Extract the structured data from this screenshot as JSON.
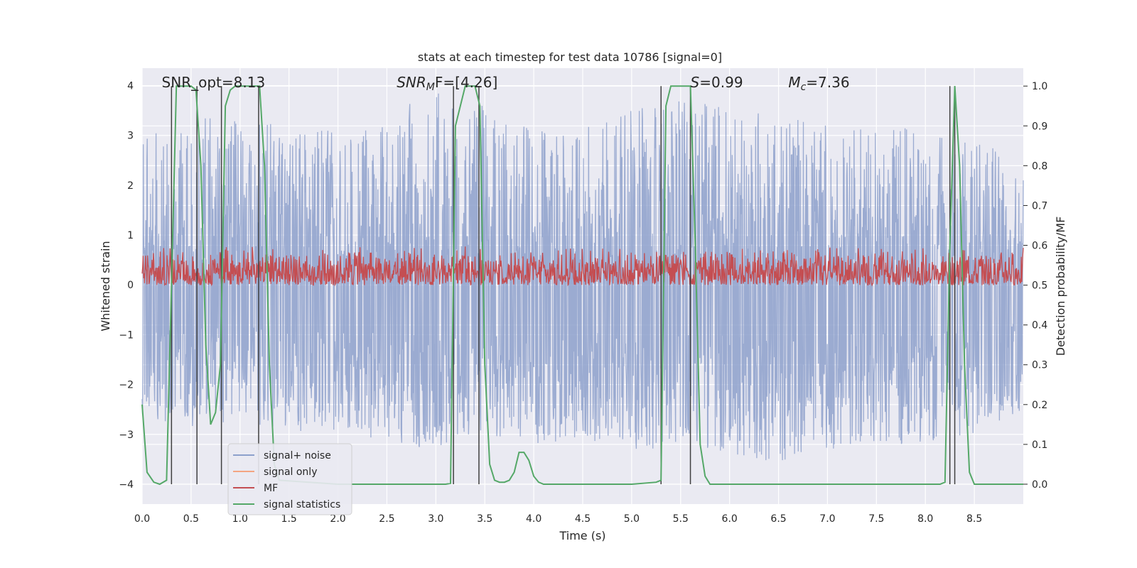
{
  "chart_data": {
    "type": "line",
    "title": "stats at each timestep for test data 10786 [signal=0]",
    "xlabel": "Time (s)",
    "ylabel": "Whitened strain",
    "y2label": "Detection probability/MF",
    "xlim": [
      0.0,
      9.0
    ],
    "ylim": [
      -4.4,
      4.35
    ],
    "y2lim": [
      -0.05,
      1.045
    ],
    "x_ticks": [
      "0.0",
      "0.5",
      "1.0",
      "1.5",
      "2.0",
      "2.5",
      "3.0",
      "3.5",
      "4.0",
      "4.5",
      "5.0",
      "5.5",
      "6.0",
      "6.5",
      "7.0",
      "7.5",
      "8.0",
      "8.5"
    ],
    "y_ticks": [
      "−4",
      "−3",
      "−2",
      "−1",
      "0",
      "1",
      "2",
      "3",
      "4"
    ],
    "y2_ticks": [
      "0.0",
      "0.1",
      "0.2",
      "0.3",
      "0.4",
      "0.5",
      "0.6",
      "0.7",
      "0.8",
      "0.9",
      "1.0"
    ],
    "grid": true,
    "legend_position": "lower-left",
    "annotations": [
      {
        "text": "SNR_opt=8.13",
        "x": 0.2
      },
      {
        "text_italic": "SNR",
        "sub": "M",
        "text_rest": "F=[4.26]",
        "x": 2.6
      },
      {
        "text_italic": "S",
        "text_rest": "=0.99",
        "x": 5.6
      },
      {
        "text_italic": "M",
        "sub": "c",
        "text_rest": "=7.36",
        "x": 6.6
      }
    ],
    "series": [
      {
        "name": "signal+ noise",
        "color": "#8da0cb",
        "axis": "left",
        "description_envelope": [
          [
            0.0,
            3.1,
            -2.6
          ],
          [
            0.5,
            3.4,
            -2.9
          ],
          [
            1.0,
            3.3,
            -2.8
          ],
          [
            1.5,
            3.2,
            -3.0
          ],
          [
            2.0,
            3.3,
            -3.0
          ],
          [
            2.5,
            3.4,
            -3.1
          ],
          [
            3.0,
            3.9,
            -3.4
          ],
          [
            3.5,
            3.6,
            -3.0
          ],
          [
            4.0,
            3.3,
            -3.2
          ],
          [
            4.5,
            3.4,
            -3.1
          ],
          [
            5.0,
            3.6,
            -3.3
          ],
          [
            5.5,
            3.8,
            -3.3
          ],
          [
            6.0,
            3.6,
            -3.4
          ],
          [
            6.5,
            3.4,
            -3.6
          ],
          [
            7.0,
            3.2,
            -3.3
          ],
          [
            7.5,
            3.3,
            -3.2
          ],
          [
            8.0,
            3.1,
            -3.2
          ],
          [
            8.5,
            2.9,
            -3.0
          ],
          [
            9.0,
            2.6,
            -2.5
          ]
        ]
      },
      {
        "name": "signal only",
        "color": "#f4a582",
        "axis": "left"
      },
      {
        "name": "MF",
        "color": "#c44e52",
        "axis": "right",
        "level_range": [
          0.5,
          0.6
        ]
      },
      {
        "name": "signal statistics",
        "color": "#55a868",
        "axis": "right",
        "x": [
          0.0,
          0.05,
          0.12,
          0.18,
          0.25,
          0.3,
          0.35,
          0.4,
          0.5,
          0.55,
          0.6,
          0.65,
          0.7,
          0.75,
          0.8,
          0.85,
          0.9,
          0.95,
          1.0,
          1.1,
          1.2,
          1.25,
          1.3,
          1.35,
          1.4,
          2.0,
          2.5,
          3.0,
          3.1,
          3.15,
          3.2,
          3.3,
          3.4,
          3.45,
          3.5,
          3.55,
          3.6,
          3.65,
          3.7,
          3.75,
          3.8,
          3.85,
          3.9,
          3.95,
          4.0,
          4.05,
          4.1,
          4.15,
          4.5,
          5.0,
          5.25,
          5.3,
          5.35,
          5.4,
          5.5,
          5.6,
          5.65,
          5.7,
          5.75,
          5.8,
          6.0,
          7.0,
          8.0,
          8.15,
          8.2,
          8.25,
          8.3,
          8.35,
          8.4,
          8.45,
          8.5,
          9.0
        ],
        "y": [
          0.2,
          0.03,
          0.005,
          0.0,
          0.01,
          0.5,
          1.0,
          1.0,
          1.0,
          0.99,
          0.8,
          0.35,
          0.15,
          0.18,
          0.3,
          0.95,
          0.99,
          1.0,
          1.0,
          1.0,
          1.0,
          0.8,
          0.3,
          0.05,
          0.01,
          0.0,
          0.0,
          0.0,
          0.0,
          0.002,
          0.9,
          1.0,
          1.0,
          0.95,
          0.3,
          0.05,
          0.01,
          0.005,
          0.005,
          0.01,
          0.03,
          0.08,
          0.08,
          0.06,
          0.02,
          0.005,
          0.0,
          0.0,
          0.0,
          0.0,
          0.005,
          0.01,
          0.95,
          1.0,
          1.0,
          1.0,
          0.6,
          0.1,
          0.02,
          0.0,
          0.0,
          0.0,
          0.0,
          0.0,
          0.005,
          0.6,
          1.0,
          0.8,
          0.3,
          0.03,
          0.0,
          0.0
        ]
      },
      {
        "name": "markers",
        "color": "#404040",
        "axis": "right",
        "x": [
          0.3,
          0.56,
          0.81,
          1.19,
          3.18,
          3.44,
          5.3,
          5.6,
          8.25,
          8.3
        ],
        "y_top": [
          1.0,
          1.0,
          1.0,
          1.0,
          1.0,
          1.0,
          1.0,
          1.0,
          1.0,
          1.0
        ]
      }
    ]
  }
}
